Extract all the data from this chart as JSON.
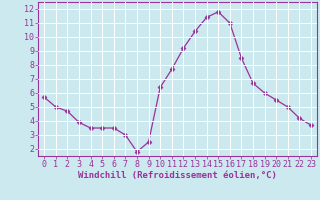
{
  "x": [
    0,
    1,
    2,
    3,
    4,
    5,
    6,
    7,
    8,
    9,
    10,
    11,
    12,
    13,
    14,
    15,
    16,
    17,
    18,
    19,
    20,
    21,
    22,
    23
  ],
  "y": [
    5.7,
    5.0,
    4.7,
    3.9,
    3.5,
    3.5,
    3.5,
    3.0,
    1.8,
    2.5,
    6.4,
    7.7,
    9.2,
    10.4,
    11.4,
    11.8,
    11.0,
    8.5,
    6.7,
    6.0,
    5.5,
    5.0,
    4.2,
    3.7
  ],
  "line_color": "#993399",
  "marker": "D",
  "marker_size": 2.5,
  "bg_color": "#cce9f0",
  "grid_color": "#ffffff",
  "xlabel": "Windchill (Refroidissement éolien,°C)",
  "ylabel": "",
  "xlim": [
    -0.5,
    23.5
  ],
  "ylim": [
    1.5,
    12.5
  ],
  "yticks": [
    2,
    3,
    4,
    5,
    6,
    7,
    8,
    9,
    10,
    11,
    12
  ],
  "xticks": [
    0,
    1,
    2,
    3,
    4,
    5,
    6,
    7,
    8,
    9,
    10,
    11,
    12,
    13,
    14,
    15,
    16,
    17,
    18,
    19,
    20,
    21,
    22,
    23
  ],
  "tick_color": "#993399",
  "label_color": "#993399",
  "axis_color": "#993399",
  "tick_fontsize": 6.0,
  "xlabel_fontsize": 6.5
}
